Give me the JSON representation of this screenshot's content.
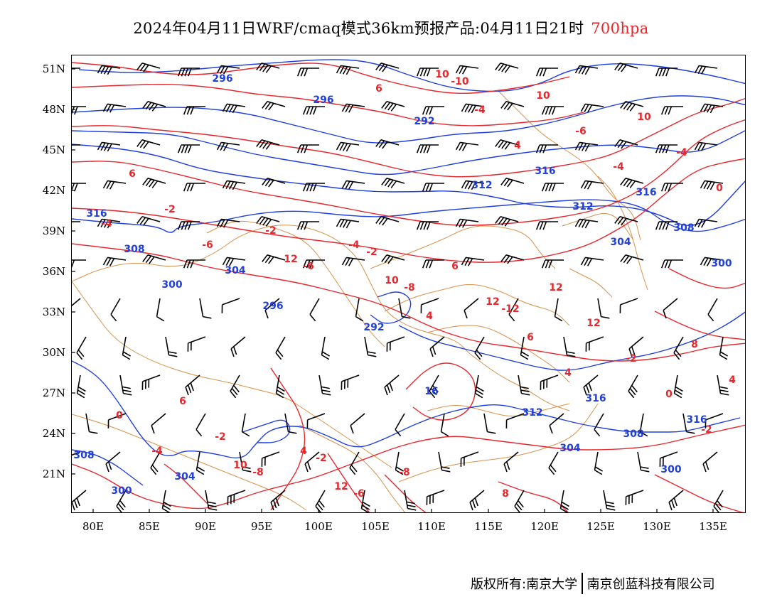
{
  "title": {
    "main": "2024年04月11日WRF/cmaq模式36km预报产品:04月11日21时",
    "level": "700hpa",
    "level_color": "#e8262b"
  },
  "colors": {
    "temperature_contour": "#e8262b",
    "height_contour": "#1f3fe0",
    "boundary": "#d9914a",
    "wind_barb": "#000000"
  },
  "map": {
    "lon_range": [
      78,
      138
    ],
    "lat_range": [
      18,
      52
    ],
    "x_ticks": [
      "80E",
      "85E",
      "90E",
      "95E",
      "100E",
      "105E",
      "110E",
      "115E",
      "120E",
      "125E",
      "130E",
      "135E"
    ],
    "y_ticks": [
      "51N",
      "48N",
      "45N",
      "42N",
      "39N",
      "36N",
      "33N",
      "30N",
      "27N",
      "24N",
      "21N"
    ],
    "height_labels": [
      "292",
      "292",
      "296",
      "296",
      "296",
      "300",
      "300",
      "300",
      "300",
      "304",
      "304",
      "304",
      "304",
      "308",
      "308",
      "308",
      "308",
      "312",
      "312",
      "312",
      "16",
      "316",
      "316",
      "316",
      "316",
      "316"
    ],
    "temp_labels": [
      "-12",
      "-10",
      "-8",
      "-6",
      "-6",
      "-8",
      "-6",
      "-4",
      "-4",
      "-2",
      "-2",
      "-2",
      "-2",
      "-2",
      "-2",
      "0",
      "0",
      "0",
      "-4",
      "4",
      "4",
      "6",
      "6",
      "4",
      "-4",
      "-2",
      "-6",
      "6",
      "-4",
      "4",
      "6",
      "8",
      "10",
      "12",
      "10",
      "12",
      "10",
      "10",
      "12",
      "12",
      "10",
      "12",
      "8",
      "6",
      "-8",
      "-4",
      "4"
    ]
  },
  "footer": {
    "left": "版权所有:南京大学",
    "right": "南京创蓝科技有限公司"
  }
}
